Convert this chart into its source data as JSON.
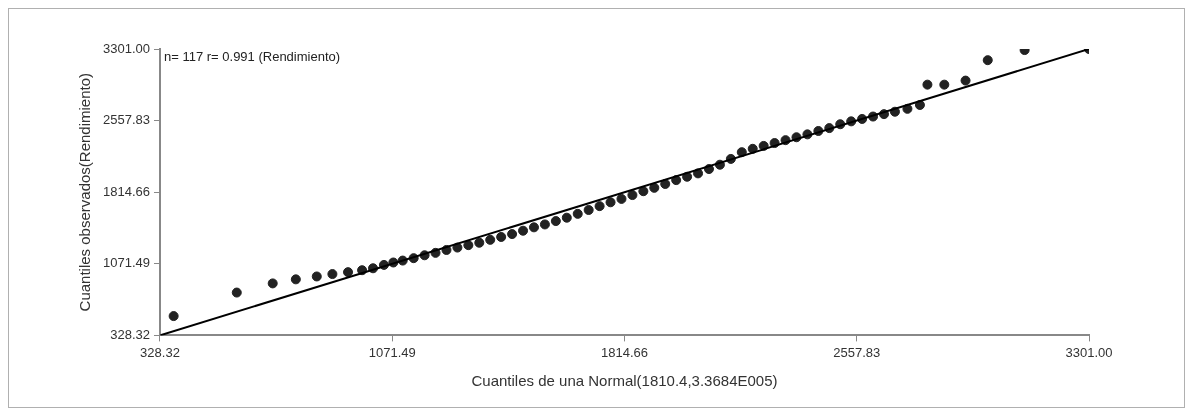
{
  "chart_data": {
    "type": "scatter",
    "xlabel": "Cuantiles de una Normal(1810.4,3.3684E005)",
    "ylabel": "Cuantiles observados(Rendimiento)",
    "annotations": [
      "n= 117 r= 0.991 (Rendimiento)"
    ],
    "xlim": [
      328.32,
      3301
    ],
    "ylim": [
      328.32,
      3301
    ],
    "xticks": [
      328.32,
      1071.49,
      1814.66,
      {
        "value": 2557.83,
        "label": "2557.83"
      },
      {
        "value": 3301,
        "label": "3301.00"
      }
    ],
    "yticks": [
      328.32,
      1071.49,
      1814.66,
      {
        "value": 2557.83,
        "label": "2557.83"
      },
      {
        "value": 3301,
        "label": "3301.00"
      }
    ],
    "series": [
      {
        "type": "scatter",
        "color": "#222222",
        "marker": "circle",
        "x": [
          372,
          574,
          689,
          763,
          830,
          880,
          930,
          975,
          1010,
          1045,
          1075,
          1105,
          1140,
          1175,
          1210,
          1245,
          1280,
          1315,
          1350,
          1385,
          1420,
          1455,
          1490,
          1525,
          1560,
          1595,
          1630,
          1665,
          1700,
          1735,
          1770,
          1805,
          1840,
          1875,
          1910,
          1945,
          1980,
          2015,
          2050,
          2085,
          2120,
          2155,
          2190,
          2225,
          2260,
          2295,
          2330,
          2365,
          2400,
          2435,
          2470,
          2505,
          2540,
          2575,
          2610,
          2645,
          2680,
          2720,
          2760,
          2784,
          2838,
          2906,
          2977,
          3095,
          3301
        ],
        "values": [
          529,
          773,
          868,
          910,
          940,
          965,
          985,
          1005,
          1025,
          1060,
          1085,
          1105,
          1130,
          1160,
          1185,
          1215,
          1240,
          1265,
          1290,
          1320,
          1350,
          1380,
          1415,
          1450,
          1480,
          1515,
          1550,
          1590,
          1630,
          1670,
          1710,
          1745,
          1785,
          1825,
          1860,
          1900,
          1940,
          1975,
          2010,
          2055,
          2100,
          2160,
          2230,
          2265,
          2295,
          2325,
          2355,
          2385,
          2415,
          2450,
          2480,
          2520,
          2550,
          2575,
          2600,
          2625,
          2650,
          2680,
          2720,
          2931,
          2931,
          2973,
          3185,
          3290,
          3301
        ]
      },
      {
        "type": "line",
        "color": "#000000",
        "line_style": "solid",
        "marker": "none",
        "x": [
          330,
          3301
        ],
        "values": [
          330,
          3301
        ]
      }
    ]
  }
}
